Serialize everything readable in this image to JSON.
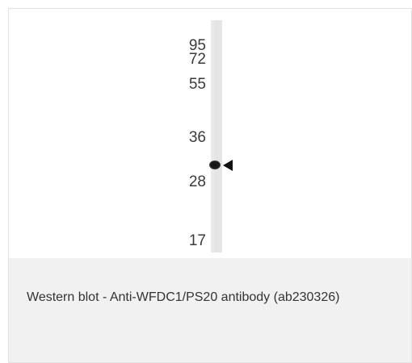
{
  "blot": {
    "markers": [
      "95",
      "72",
      "55",
      "36",
      "28",
      "17"
    ]
  },
  "caption": {
    "text": "Western blot - Anti-WFDC1/PS20 antibody (ab230326)"
  },
  "colors": {
    "caption_background": "#f1f1f1",
    "band": "#111111",
    "marker_text": "#3a3a3a"
  }
}
